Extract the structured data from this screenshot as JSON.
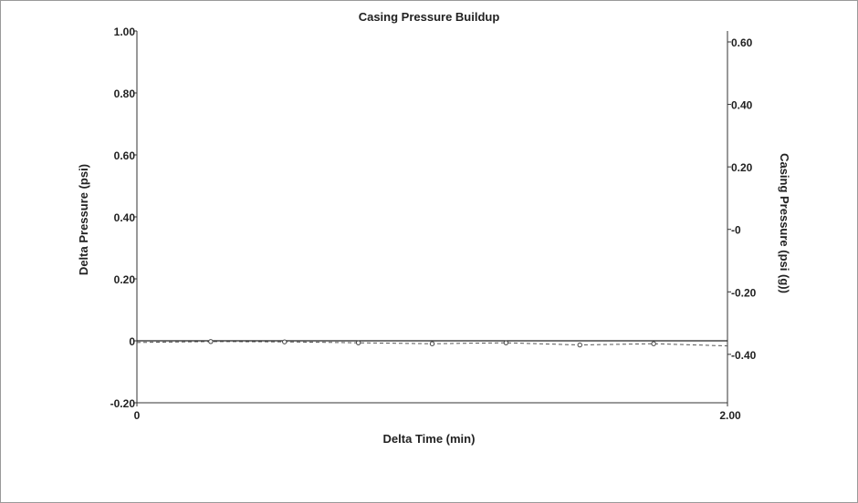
{
  "chart_data": {
    "type": "line",
    "title": "Casing Pressure Buildup",
    "xlabel": "Delta Time (min)",
    "ylabel": "Delta Pressure (psi)",
    "y2label": "Casing Pressure (psi (g))",
    "xlim": [
      0,
      2.0
    ],
    "ylim": [
      -0.2,
      1.0
    ],
    "y2lim": [
      -0.555,
      0.635
    ],
    "x_ticks": [
      "0",
      "2.00"
    ],
    "y_ticks": [
      {
        "value": 1.0,
        "label": "1.00"
      },
      {
        "value": 0.8,
        "label": "0.80"
      },
      {
        "value": 0.6,
        "label": "0.60"
      },
      {
        "value": 0.4,
        "label": "0.40"
      },
      {
        "value": 0.2,
        "label": "0.20"
      },
      {
        "value": 0.0,
        "label": "0"
      },
      {
        "value": -0.2,
        "label": "-0.20"
      }
    ],
    "y2_ticks": [
      {
        "value": 0.6,
        "label": "0.60"
      },
      {
        "value": 0.4,
        "label": "0.40"
      },
      {
        "value": 0.2,
        "label": "0.20"
      },
      {
        "value": 0.0,
        "label": "-0"
      },
      {
        "value": -0.2,
        "label": "-0.20"
      },
      {
        "value": -0.4,
        "label": "-0.40"
      }
    ],
    "grid": false,
    "series": [
      {
        "axis": "left",
        "style": "solid",
        "x": [
          0,
          2.0
        ],
        "values": [
          0,
          0
        ]
      },
      {
        "axis": "right",
        "style": "dashed-markers",
        "x": [
          0,
          0.25,
          0.5,
          0.75,
          1.0,
          1.25,
          1.5,
          1.75,
          2.0
        ],
        "values": [
          -0.362,
          -0.359,
          -0.36,
          -0.363,
          -0.366,
          -0.363,
          -0.37,
          -0.366,
          -0.373
        ]
      }
    ]
  }
}
